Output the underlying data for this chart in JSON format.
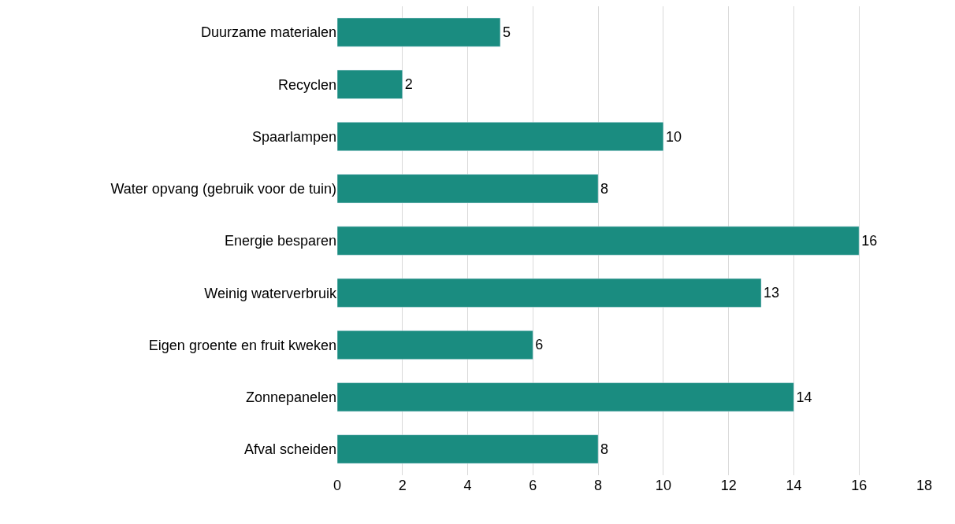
{
  "chart_data": {
    "type": "bar",
    "orientation": "horizontal",
    "categories": [
      "Duurzame materialen",
      "Recyclen",
      "Spaarlampen",
      "Water opvang (gebruik voor de tuin)",
      "Energie besparen",
      "Weinig waterverbruik",
      "Eigen groente en fruit kweken",
      "Zonnepanelen",
      "Afval scheiden"
    ],
    "values": [
      5,
      2,
      10,
      8,
      16,
      13,
      6,
      14,
      8
    ],
    "color": "#1a8c80",
    "xlim": [
      0,
      18
    ],
    "xticks": [
      0,
      2,
      4,
      6,
      8,
      10,
      12,
      14,
      16,
      18
    ],
    "grid": "x",
    "data_labels": true,
    "legend": false
  }
}
